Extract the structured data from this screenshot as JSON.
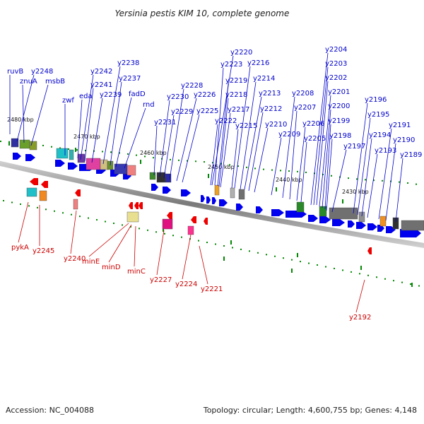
{
  "title": "Yersinia pestis KIM 10, complete genome",
  "footer": {
    "accession": "Accession: NC_004088",
    "summary": "Topology: circular; Length: 4,600,755 bp; Genes: 4,148"
  },
  "colors": {
    "forward_gene": "#0000ee",
    "reverse_gene": "#ee0000",
    "backbone": "#888888",
    "forward_label": "#0000cc",
    "reverse_label": "#cc0000",
    "tick": "#008800"
  },
  "ruler_labels": [
    "2480 kbp",
    "2470 kbp",
    "2460 kbp",
    "2450 kbp",
    "2440 kbp",
    "2430 kbp"
  ],
  "forward_gene_labels": [
    "ruvB",
    "y2248",
    "znuA",
    "msbB",
    "zwf",
    "eda",
    "y2242",
    "y2241",
    "y2239",
    "y2238",
    "y2237",
    "fadD",
    "rnd",
    "y2231",
    "y2230",
    "y2229",
    "y2228",
    "y2226",
    "y2225",
    "y2220",
    "y2223",
    "y2219",
    "y2218",
    "y2217",
    "y2222",
    "y2216",
    "y2214",
    "y2215",
    "y2213",
    "y2212",
    "y2210",
    "y2209",
    "y2208",
    "y2207",
    "y2206",
    "y2205",
    "y2204",
    "y2203",
    "y2202",
    "y2201",
    "y2200",
    "y2199",
    "y2198",
    "y2197",
    "y2196",
    "y2195",
    "y2194",
    "y2193",
    "y2191",
    "y2190",
    "y2189"
  ],
  "reverse_gene_labels": [
    "pykA",
    "y2245",
    "y2240",
    "minE",
    "minD",
    "minC",
    "y2227",
    "y2224",
    "y2221",
    "y2192"
  ]
}
